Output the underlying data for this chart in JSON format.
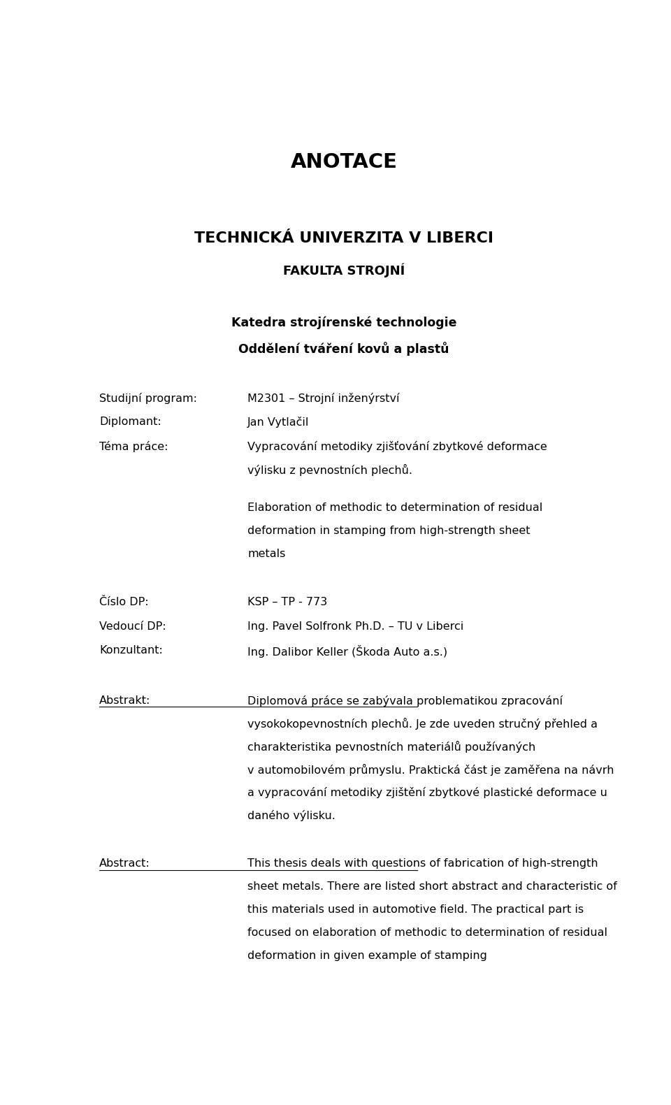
{
  "bg_color": "#ffffff",
  "page_width": 9.6,
  "page_height": 15.81,
  "title": "ANOTACE",
  "university": "TECHNICKÁ UNIVERZITA V LIBERCI",
  "faculty": "FAKULTA STROJNÍ",
  "dept1": "Katedra strojírenské technologie",
  "dept2": "Oddělení tváření kovů a plastů",
  "fields": [
    {
      "label": "Studijní program:",
      "value": "M2301 – Strojní inženýrství"
    },
    {
      "label": "Diplomant:",
      "value": "Jan Vytlačil"
    },
    {
      "label": "Téma práce:",
      "value_lines": [
        "Vypracování metodiky zjišťování zbytkové deformace",
        "výlisku z pevnostních plechů."
      ]
    }
  ],
  "tema_en_lines": [
    "Elaboration of methodic to determination of residual",
    "deformation in stamping from high-strength sheet",
    "metals"
  ],
  "fields2": [
    {
      "label": "Číslo DP:",
      "value": "KSP – TP - 773"
    },
    {
      "label": "Vedoucí DP:",
      "value": "Ing. Pavel Solfronk Ph.D. – TU v Liberci"
    },
    {
      "label": "Konzultant:",
      "value": "Ing. Dalibor Keller (Škoda Auto a.s.)"
    }
  ],
  "abstrakt_label": "Abstrakt:",
  "abstrakt_lines": [
    "Diplomová práce se zabývala problematikou zpracování",
    "vysokokopevnostních plechů. Je zde uveden stručný přehled a",
    "charakteristika pevnostních materiálů používaných",
    "v automobilovém průmyslu. Praktická část je zaměřena na návrh",
    "a vypracování metodiky zjištění zbytkové plastické deformace u",
    "daného výlisku."
  ],
  "abstract_label": "Abstract:",
  "abstract_lines": [
    "This thesis deals with questions of fabrication of high-strength",
    "sheet metals. There are listed short abstract and characteristic of",
    "this materials used in automotive field. The practical part is",
    "focused on elaboration of methodic to determination of residual",
    "deformation in given example of stamping"
  ]
}
